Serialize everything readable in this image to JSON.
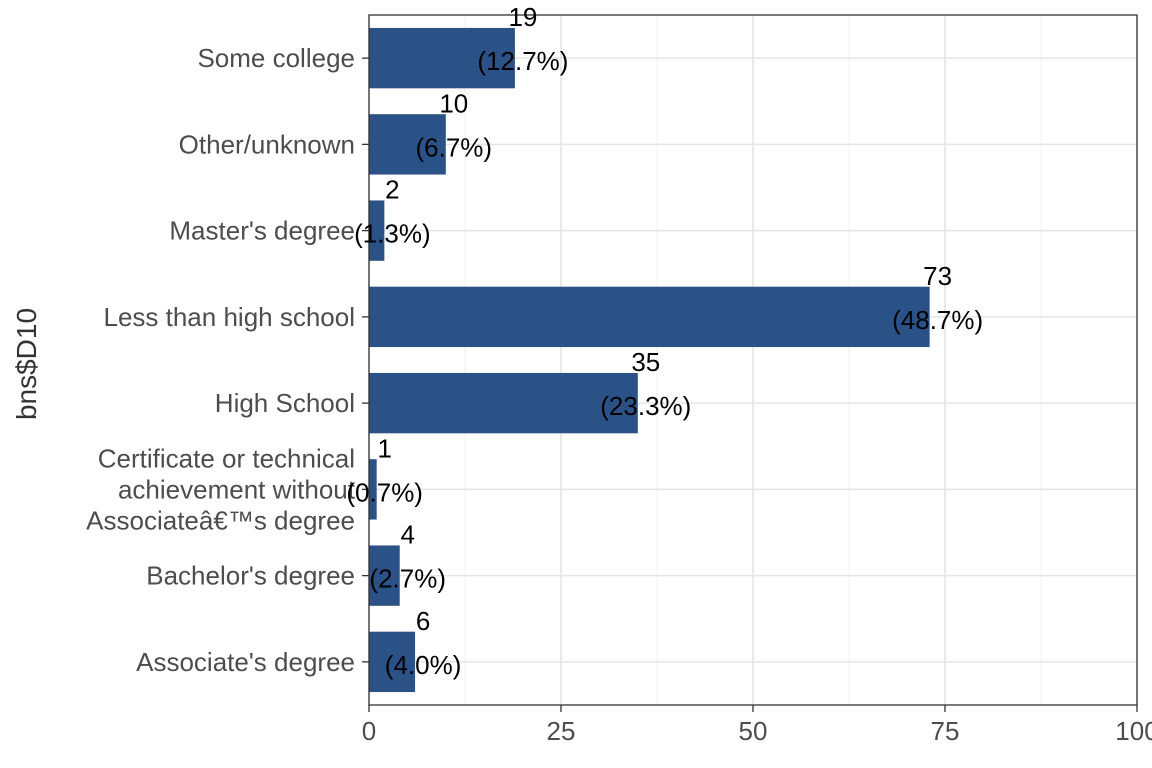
{
  "chart_data": {
    "type": "bar",
    "orientation": "horizontal",
    "ylabel": "bns$D10",
    "xlabel": "",
    "xlim": [
      0,
      100
    ],
    "x_ticks": [
      "0",
      "25",
      "50",
      "75",
      "100"
    ],
    "grid": true,
    "bar_color": "#2b5287",
    "categories": [
      [
        "Associate's degree"
      ],
      [
        "Bachelor's degree"
      ],
      [
        "Certificate or technical",
        "achievement without",
        "Associateâ€™s degree"
      ],
      [
        "High School"
      ],
      [
        "Less than high school"
      ],
      [
        "Master's degree"
      ],
      [
        "Other/unknown"
      ],
      [
        "Some college"
      ]
    ],
    "values": [
      6,
      4,
      1,
      35,
      73,
      2,
      10,
      19
    ],
    "count_labels": [
      "6",
      "4",
      "1",
      "35",
      "73",
      "2",
      "10",
      "19"
    ],
    "percent_labels": [
      "(4.0%)",
      "(2.7%)",
      "(0.7%)",
      "(23.3%)",
      "(48.7%)",
      "(1.3%)",
      "(6.7%)",
      "(12.7%)"
    ]
  }
}
